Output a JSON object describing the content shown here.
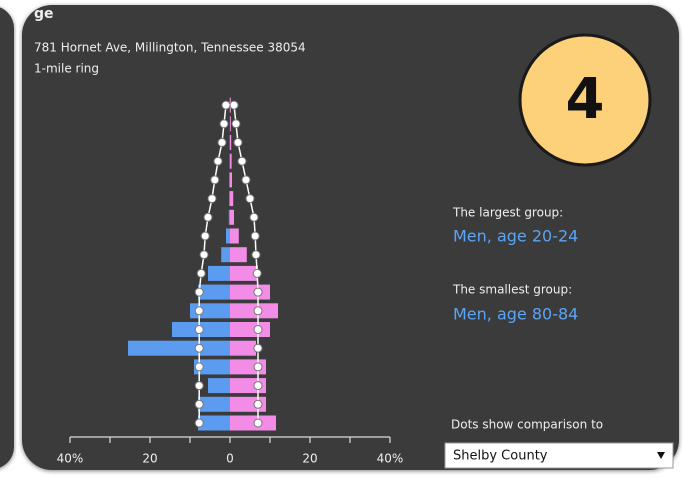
{
  "panel": {
    "title": "ge",
    "address": "781 Hornet Ave, Millington, Tennessee 38054",
    "ring": "1-mile ring",
    "badge": "4",
    "largest_label": "The largest group:",
    "largest_value": "Men, age 20-24",
    "smallest_label": "The smallest group:",
    "smallest_value": "Men, age 80-84",
    "dots_label": "Dots show comparison to",
    "dropdown": "Shelby County"
  },
  "chart_data": {
    "type": "pyramid",
    "series": [
      {
        "side": "left",
        "color": "#5b9cf0",
        "values": [
          8,
          8,
          5.5,
          9,
          25.5,
          14.5,
          10,
          8,
          5.5,
          2.2,
          1,
          0.3,
          0.2,
          0.2,
          0.1,
          0.1,
          0.05,
          0.1
        ]
      },
      {
        "side": "right",
        "color": "#f28ce6",
        "values": [
          11.5,
          9,
          9,
          9,
          6.5,
          10,
          12,
          10,
          7,
          4.2,
          2.2,
          1,
          0.8,
          0.5,
          0.4,
          0.3,
          0.2,
          0.2
        ]
      }
    ],
    "comparison": [
      {
        "side": "left",
        "values": [
          7.7,
          7.7,
          7.7,
          7.7,
          7.7,
          7.7,
          7.7,
          7.7,
          7.2,
          6.5,
          6.2,
          5.5,
          4.5,
          3.8,
          3,
          2,
          1.5,
          1
        ]
      },
      {
        "side": "right",
        "values": [
          7,
          7,
          7,
          7,
          7,
          7,
          7,
          7,
          6.8,
          6.5,
          6.3,
          6,
          5,
          4,
          3,
          2,
          1.5,
          1
        ]
      }
    ],
    "xlim": [
      -40,
      40
    ],
    "xticks": [
      {
        "value": -40,
        "label": "40%"
      },
      {
        "value": -20,
        "label": "20"
      },
      0,
      {
        "value": 20,
        "label": "20"
      },
      {
        "value": 40,
        "label": "40%"
      }
    ],
    "xminorticks": [
      -30,
      -10,
      10,
      30
    ]
  }
}
